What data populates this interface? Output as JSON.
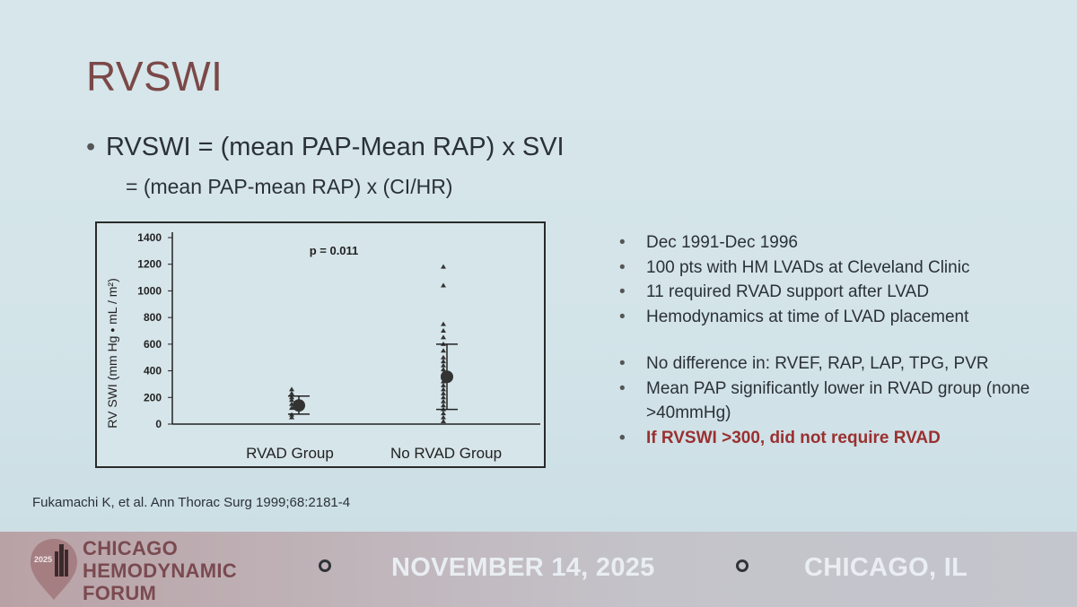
{
  "slide": {
    "title": "RVSWI",
    "equation_line1": "RVSWI = (mean PAP-Mean RAP) x SVI",
    "equation_line2": "= (mean PAP-mean RAP) x (CI/HR)",
    "bullet_glyph": "•"
  },
  "chart_data": {
    "type": "scatter",
    "title": "",
    "annotation": "p = 0.011",
    "ylabel": "RV SWI (mm Hg • mL / m²)",
    "xlabel": "",
    "ylim": [
      0,
      1400
    ],
    "yticks": [
      0,
      200,
      400,
      600,
      800,
      1000,
      1200,
      1400
    ],
    "categories": [
      "RVAD Group",
      "No RVAD Group"
    ],
    "series": [
      {
        "values": [
          [
            50,
            70,
            120,
            150,
            180,
            200,
            230,
            260
          ],
          [
            20,
            50,
            80,
            110,
            140,
            170,
            200,
            230,
            260,
            290,
            320,
            350,
            380,
            410,
            440,
            470,
            500,
            550,
            600,
            650,
            700,
            750,
            1040,
            1180
          ]
        ]
      }
    ],
    "summary": [
      {
        "category": "RVAD Group",
        "mean": 140,
        "low": 75,
        "high": 210
      },
      {
        "category": "No RVAD Group",
        "mean": 355,
        "low": 110,
        "high": 600
      }
    ],
    "grid": false,
    "legend": "none"
  },
  "notes": {
    "group1": [
      "Dec 1991-Dec 1996",
      "100 pts with HM LVADs at Cleveland Clinic",
      "11 required RVAD support after LVAD",
      "Hemodynamics at time of LVAD placement"
    ],
    "group2": [
      "No difference in: RVEF, RAP, LAP, TPG, PVR",
      "Mean PAP significantly lower in RVAD group (none >40mmHg)"
    ],
    "highlight": "If RVSWI >300, did not require RVAD"
  },
  "citation": "Fukamachi K, et al. Ann Thorac Surg 1999;68:2181-4",
  "footer": {
    "logo_year": "2025",
    "logo_line1": "CHICAGO",
    "logo_line2": "HEMODYNAMIC",
    "logo_line3": "FORUM",
    "date": "NOVEMBER 14, 2025",
    "location": "CHICAGO, IL"
  },
  "colors": {
    "title": "#7b4848",
    "highlight": "#9a3030",
    "footer_text": "#e9eef3",
    "logo": "#7a4a50"
  }
}
